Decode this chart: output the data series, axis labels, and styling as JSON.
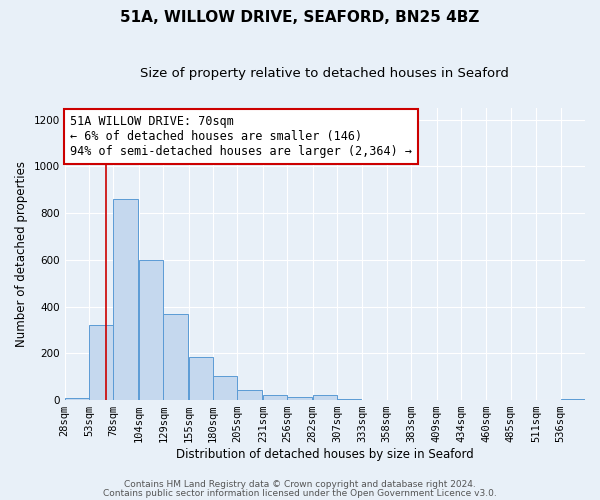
{
  "title": "51A, WILLOW DRIVE, SEAFORD, BN25 4BZ",
  "subtitle": "Size of property relative to detached houses in Seaford",
  "xlabel": "Distribution of detached houses by size in Seaford",
  "ylabel": "Number of detached properties",
  "bin_labels": [
    "28sqm",
    "53sqm",
    "78sqm",
    "104sqm",
    "129sqm",
    "155sqm",
    "180sqm",
    "205sqm",
    "231sqm",
    "256sqm",
    "282sqm",
    "307sqm",
    "333sqm",
    "358sqm",
    "383sqm",
    "409sqm",
    "434sqm",
    "460sqm",
    "485sqm",
    "511sqm",
    "536sqm"
  ],
  "bin_edges": [
    28,
    53,
    78,
    104,
    129,
    155,
    180,
    205,
    231,
    256,
    282,
    307,
    333,
    358,
    383,
    409,
    434,
    460,
    485,
    511,
    536
  ],
  "bar_heights": [
    10,
    320,
    860,
    600,
    370,
    185,
    105,
    45,
    20,
    15,
    20,
    5,
    0,
    0,
    0,
    0,
    0,
    0,
    0,
    0,
    5
  ],
  "bar_color": "#c5d8ee",
  "bar_edge_color": "#5b9bd5",
  "vline_x": 70,
  "vline_color": "#cc0000",
  "ylim": [
    0,
    1250
  ],
  "yticks": [
    0,
    200,
    400,
    600,
    800,
    1000,
    1200
  ],
  "annotation_line1": "51A WILLOW DRIVE: 70sqm",
  "annotation_line2": "← 6% of detached houses are smaller (146)",
  "annotation_line3": "94% of semi-detached houses are larger (2,364) →",
  "annotation_box_color": "#ffffff",
  "annotation_box_edge": "#cc0000",
  "footer_line1": "Contains HM Land Registry data © Crown copyright and database right 2024.",
  "footer_line2": "Contains public sector information licensed under the Open Government Licence v3.0.",
  "background_color": "#e8f0f8",
  "plot_bg_color": "#e8f0f8",
  "title_fontsize": 11,
  "subtitle_fontsize": 9.5,
  "axis_label_fontsize": 8.5,
  "tick_fontsize": 7.5,
  "annotation_fontsize": 8.5,
  "footer_fontsize": 6.5,
  "bin_width": 25
}
